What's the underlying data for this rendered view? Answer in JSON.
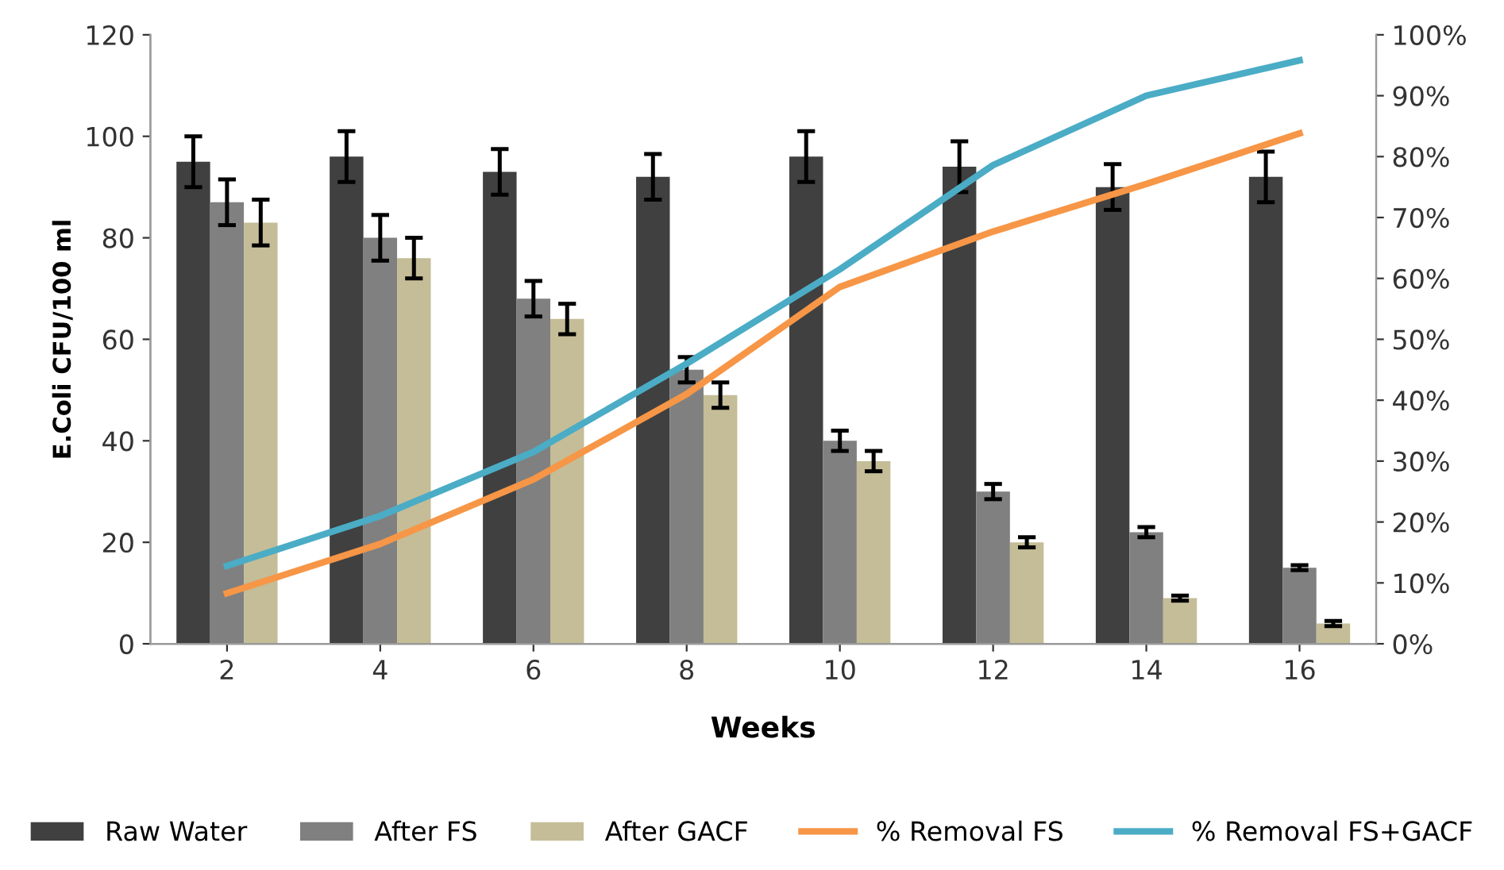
{
  "chart_data": {
    "type": "bar",
    "categories": [
      "2",
      "4",
      "6",
      "8",
      "10",
      "12",
      "14",
      "16"
    ],
    "xlabel": "Weeks",
    "ylabel": "E.Coli CFU/100 ml",
    "ylim": [
      0,
      120
    ],
    "yticks": [
      0,
      20,
      40,
      60,
      80,
      100,
      120
    ],
    "y2lim": [
      0,
      100
    ],
    "y2ticks": [
      {
        "value": 0,
        "label": "0%"
      },
      {
        "value": 10,
        "label": "10%"
      },
      {
        "value": 20,
        "label": "20%"
      },
      {
        "value": 30,
        "label": "30%"
      },
      {
        "value": 40,
        "label": "40%"
      },
      {
        "value": 50,
        "label": "50%"
      },
      {
        "value": 60,
        "label": "60%"
      },
      {
        "value": 70,
        "label": "70%"
      },
      {
        "value": 80,
        "label": "80%"
      },
      {
        "value": 90,
        "label": "90%"
      },
      {
        "value": 100,
        "label": "100%"
      }
    ],
    "grid": false,
    "legend": "bottom",
    "series": [
      {
        "name": "Raw Water",
        "color": "#404040",
        "values": [
          95,
          96,
          93,
          92,
          96,
          94,
          90,
          92
        ],
        "errors": [
          5,
          5,
          4.5,
          4.5,
          5,
          5,
          4.5,
          5
        ]
      },
      {
        "name": "After FS",
        "color": "#808080",
        "values": [
          87,
          80,
          68,
          54,
          40,
          30,
          22,
          15
        ],
        "errors": [
          4.5,
          4.5,
          3.5,
          2.5,
          2,
          1.5,
          1,
          0.5
        ]
      },
      {
        "name": "After GACF",
        "color": "#c4bd97",
        "values": [
          83,
          76,
          64,
          49,
          36,
          20,
          9,
          4
        ],
        "errors": [
          4.5,
          4,
          3,
          2.5,
          2,
          1,
          0.5,
          0.5
        ]
      },
      {
        "name": "% Removal FS",
        "type": "line",
        "axis": "y2",
        "color": "#f79646",
        "marker": "none",
        "line_style": "solid",
        "values": [
          8.3,
          16.4,
          27,
          41,
          58.6,
          67.7,
          75.5,
          83.8
        ]
      },
      {
        "name": "% Removal FS+GACF",
        "type": "line",
        "axis": "y2",
        "color": "#4bacc6",
        "marker": "none",
        "line_style": "solid",
        "values": [
          12.8,
          21,
          31.5,
          46,
          61.5,
          78.6,
          90,
          95.8
        ]
      }
    ]
  }
}
